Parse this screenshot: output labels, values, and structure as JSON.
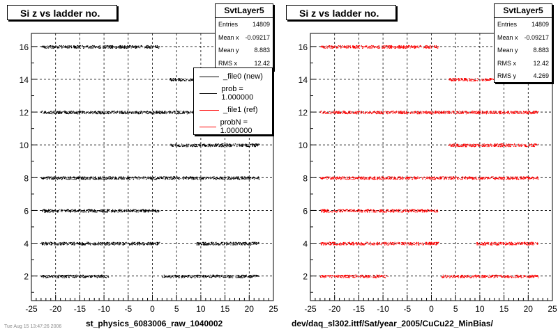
{
  "footer_note": "Tue Aug 15 13:47:26 2006",
  "panels": [
    {
      "title": "Si z vs ladder no.",
      "stats": {
        "name": "SvtLayer5",
        "rows": [
          {
            "label": "Entries",
            "value": "14809"
          },
          {
            "label": "Mean x",
            "value": "-0.09217"
          },
          {
            "label": "Mean y",
            "value": "8.883"
          },
          {
            "label": "RMS x",
            "value": "12.42"
          }
        ]
      },
      "legend": [
        {
          "label": "_file0 (new)",
          "color": "#000000"
        },
        {
          "label": "prob = 1.000000",
          "color": "#000000"
        },
        {
          "label": "_file1 (ref)",
          "color": "#ff0000"
        },
        {
          "label": "probN = 1.000000",
          "color": "#ff0000"
        }
      ],
      "xtitle": "st_physics_6083006_raw_1040002"
    },
    {
      "title": "Si z vs ladder no.",
      "stats": {
        "name": "SvtLayer5",
        "rows": [
          {
            "label": "Entries",
            "value": "14809"
          },
          {
            "label": "Mean x",
            "value": "-0.09217"
          },
          {
            "label": "Mean y",
            "value": "8.883"
          },
          {
            "label": "RMS x",
            "value": "12.42"
          },
          {
            "label": "RMS y",
            "value": "4.269"
          }
        ]
      },
      "legend": [],
      "xtitle": "dev/daq_sl302.ittf/Sat/year_2005/CuCu22_MinBias/"
    }
  ],
  "chart_data": [
    {
      "type": "scatter",
      "title": "Si z vs ladder no.",
      "xlabel": "st_physics_6083006_raw_1040002",
      "ylabel": "",
      "xlim": [
        -25,
        25
      ],
      "ylim": [
        0.5,
        16.8
      ],
      "xticks": [
        -25,
        -20,
        -15,
        -10,
        -5,
        0,
        5,
        10,
        15,
        20,
        25
      ],
      "yticks": [
        2,
        4,
        6,
        8,
        10,
        12,
        14,
        16
      ],
      "grid": true,
      "color": "#000000",
      "series": [
        {
          "y": 16,
          "segments": [
            [
              -23,
              1.5
            ]
          ]
        },
        {
          "y": 14,
          "segments": [
            [
              3.5,
              14
            ]
          ]
        },
        {
          "y": 12,
          "segments": [
            [
              -23,
              22
            ]
          ]
        },
        {
          "y": 10,
          "segments": [
            [
              3.5,
              22
            ]
          ]
        },
        {
          "y": 8,
          "segments": [
            [
              -23,
              22
            ]
          ]
        },
        {
          "y": 6,
          "segments": [
            [
              -23,
              1.5
            ]
          ]
        },
        {
          "y": 4,
          "segments": [
            [
              -23,
              1.5
            ],
            [
              9,
              22
            ]
          ]
        },
        {
          "y": 2,
          "segments": [
            [
              -23,
              -9
            ],
            [
              2,
              22
            ]
          ]
        }
      ]
    },
    {
      "type": "scatter",
      "title": "Si z vs ladder no.",
      "xlabel": "dev/daq_sl302.ittf/Sat/year_2005/CuCu22_MinBias/",
      "ylabel": "",
      "xlim": [
        -25,
        25
      ],
      "ylim": [
        0.5,
        16.8
      ],
      "xticks": [
        -25,
        -20,
        -15,
        -10,
        -5,
        0,
        5,
        10,
        15,
        20,
        25
      ],
      "yticks": [
        2,
        4,
        6,
        8,
        10,
        12,
        14,
        16
      ],
      "grid": true,
      "color": "#ff0000",
      "series": [
        {
          "y": 16,
          "segments": [
            [
              -23,
              1.5
            ]
          ]
        },
        {
          "y": 14,
          "segments": [
            [
              3.5,
              22
            ]
          ]
        },
        {
          "y": 12,
          "segments": [
            [
              -23,
              22
            ]
          ]
        },
        {
          "y": 10,
          "segments": [
            [
              3.5,
              22
            ]
          ]
        },
        {
          "y": 8,
          "segments": [
            [
              -23,
              22
            ]
          ]
        },
        {
          "y": 6,
          "segments": [
            [
              -23,
              1.5
            ]
          ]
        },
        {
          "y": 4,
          "segments": [
            [
              -23,
              1.5
            ],
            [
              9,
              22
            ]
          ]
        },
        {
          "y": 2,
          "segments": [
            [
              -23,
              -9
            ],
            [
              2,
              22
            ]
          ]
        }
      ]
    }
  ]
}
